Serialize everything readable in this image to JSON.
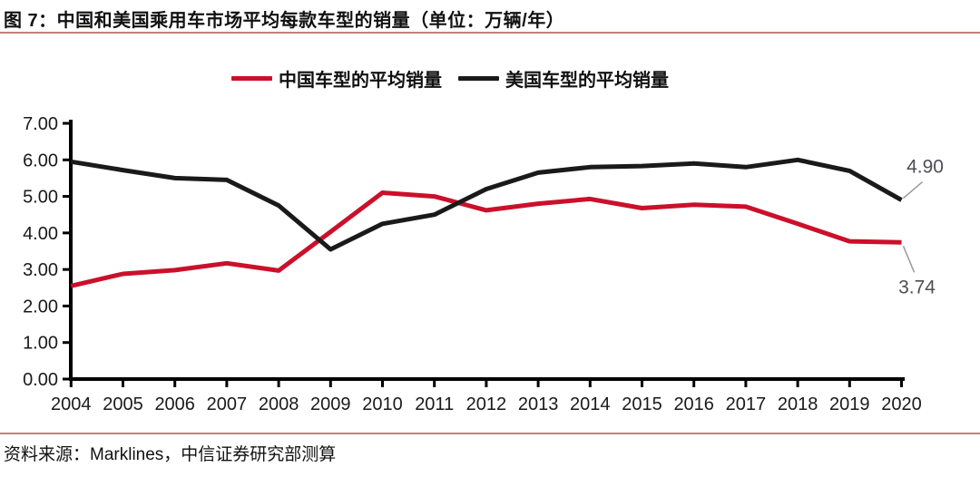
{
  "page": {
    "title": "图 7：中国和美国乘用车市场平均每款车型的销量（单位：万辆/年）",
    "source": "资料来源：Marklines，中信证券研究部测算"
  },
  "colors": {
    "china_line": "#cb102b",
    "us_line": "#1a1a1a",
    "rule": "#c4807e",
    "axis": "#000000",
    "tick_label": "#1a1a1a",
    "annotation_text": "#4d4d55",
    "leader_line": "#9a9a9a"
  },
  "legend": {
    "items": [
      {
        "label": "中国车型的平均销量",
        "color_key": "china_line"
      },
      {
        "label": "美国车型的平均销量",
        "color_key": "us_line"
      }
    ]
  },
  "chart_data": {
    "type": "line",
    "title": "中国和美国乘用车市场平均每款车型的销量（单位：万辆/年）",
    "x": [
      2004,
      2005,
      2006,
      2007,
      2008,
      2009,
      2010,
      2011,
      2012,
      2013,
      2014,
      2015,
      2016,
      2017,
      2018,
      2019,
      2020
    ],
    "series": [
      {
        "name": "中国车型的平均销量",
        "color_key": "china_line",
        "values": [
          2.55,
          2.88,
          2.98,
          3.17,
          2.97,
          4.03,
          5.1,
          5.0,
          4.62,
          4.8,
          4.93,
          4.68,
          4.77,
          4.72,
          4.25,
          3.77,
          3.74
        ]
      },
      {
        "name": "美国车型的平均销量",
        "color_key": "us_line",
        "values": [
          5.95,
          5.72,
          5.5,
          5.45,
          4.75,
          3.55,
          4.25,
          4.5,
          5.2,
          5.65,
          5.8,
          5.83,
          5.9,
          5.8,
          6.0,
          5.7,
          4.9
        ]
      }
    ],
    "xlabel": "",
    "ylabel": "",
    "ylim": [
      0,
      7
    ],
    "ytick_labels": [
      "0.00",
      "1.00",
      "2.00",
      "3.00",
      "4.00",
      "5.00",
      "6.00",
      "7.00"
    ],
    "grid": false,
    "legend_position": "top",
    "annotations": [
      {
        "text": "4.90",
        "series": "美国车型的平均销量",
        "placement": "above-end"
      },
      {
        "text": "3.74",
        "series": "中国车型的平均销量",
        "placement": "below-end"
      }
    ]
  }
}
